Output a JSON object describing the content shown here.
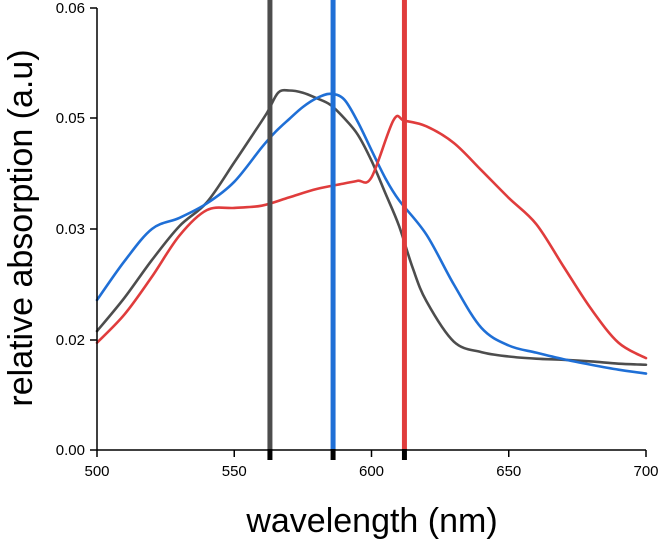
{
  "chart_data": {
    "type": "line",
    "xlabel": "wavelength (nm)",
    "ylabel": "relative absorption (a.u)",
    "xlim": [
      500,
      700
    ],
    "xticks": [
      500,
      550,
      600,
      650,
      700
    ],
    "xtick_labels": [
      "500",
      "550",
      "600",
      "650",
      "700"
    ],
    "yticks": [
      0.0,
      0.02,
      0.03,
      0.05,
      0.06
    ],
    "ytick_labels": [
      "0.00",
      "0.02",
      "0.03",
      "0.05",
      "0.06"
    ],
    "grid": false,
    "series": [
      {
        "color": "#4d4d4d",
        "points": [
          [
            500,
            0.0208
          ],
          [
            510,
            0.0238
          ],
          [
            520,
            0.0272
          ],
          [
            530,
            0.0305
          ],
          [
            540,
            0.0348
          ],
          [
            550,
            0.042
          ],
          [
            557,
            0.0472
          ],
          [
            562,
            0.0505
          ],
          [
            566,
            0.0523
          ],
          [
            570,
            0.0525
          ],
          [
            575,
            0.0523
          ],
          [
            580,
            0.0518
          ],
          [
            585,
            0.0512
          ],
          [
            590,
            0.05
          ],
          [
            595,
            0.047
          ],
          [
            600,
            0.0423
          ],
          [
            605,
            0.0365
          ],
          [
            610,
            0.0306
          ],
          [
            615,
            0.0265
          ],
          [
            620,
            0.0235
          ],
          [
            630,
            0.0197
          ],
          [
            640,
            0.0178
          ],
          [
            650,
            0.017
          ],
          [
            660,
            0.0166
          ],
          [
            670,
            0.0164
          ],
          [
            680,
            0.0161
          ],
          [
            690,
            0.0157
          ],
          [
            700,
            0.0155
          ]
        ]
      },
      {
        "color": "#1f6fd6",
        "points": [
          [
            500,
            0.0236
          ],
          [
            510,
            0.0271
          ],
          [
            520,
            0.03
          ],
          [
            530,
            0.032
          ],
          [
            540,
            0.0346
          ],
          [
            550,
            0.0385
          ],
          [
            560,
            0.0447
          ],
          [
            565,
            0.0475
          ],
          [
            570,
            0.0498
          ],
          [
            575,
            0.051
          ],
          [
            580,
            0.0518
          ],
          [
            585,
            0.0522
          ],
          [
            590,
            0.0517
          ],
          [
            595,
            0.0493
          ],
          [
            600,
            0.0442
          ],
          [
            605,
            0.0392
          ],
          [
            610,
            0.0352
          ],
          [
            620,
            0.0295
          ],
          [
            630,
            0.025
          ],
          [
            640,
            0.0211
          ],
          [
            650,
            0.019
          ],
          [
            660,
            0.0177
          ],
          [
            670,
            0.0165
          ],
          [
            680,
            0.0155
          ],
          [
            690,
            0.0146
          ],
          [
            700,
            0.0139
          ]
        ]
      },
      {
        "color": "#e03c3c",
        "points": [
          [
            500,
            0.0195
          ],
          [
            510,
            0.0223
          ],
          [
            520,
            0.0257
          ],
          [
            530,
            0.0294
          ],
          [
            540,
            0.0334
          ],
          [
            550,
            0.0338
          ],
          [
            560,
            0.0342
          ],
          [
            570,
            0.0357
          ],
          [
            580,
            0.0372
          ],
          [
            590,
            0.0382
          ],
          [
            595,
            0.0387
          ],
          [
            600,
            0.0393
          ],
          [
            608,
            0.0496
          ],
          [
            612,
            0.0495
          ],
          [
            620,
            0.0485
          ],
          [
            630,
            0.0455
          ],
          [
            640,
            0.0406
          ],
          [
            650,
            0.0356
          ],
          [
            660,
            0.0309
          ],
          [
            670,
            0.0266
          ],
          [
            680,
            0.0228
          ],
          [
            690,
            0.0195
          ],
          [
            700,
            0.0167
          ]
        ]
      }
    ],
    "vlines": [
      {
        "x": 563,
        "color": "#4d4d4d"
      },
      {
        "x": 586,
        "color": "#1f6fd6"
      },
      {
        "x": 612,
        "color": "#e03c3c"
      }
    ]
  }
}
